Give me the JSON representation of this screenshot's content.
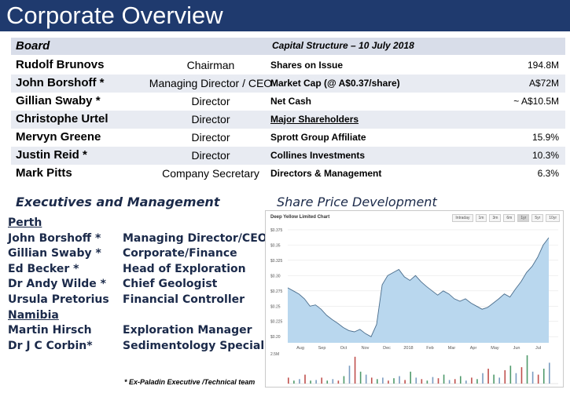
{
  "title": "Corporate Overview",
  "board": {
    "heading": "Board",
    "members": [
      {
        "name": "Rudolf Brunovs",
        "role": "Chairman"
      },
      {
        "name": "John Borshoff *",
        "role": "Managing Director / CEO"
      },
      {
        "name": "Gillian Swaby *",
        "role": "Director"
      },
      {
        "name": "Christophe Urtel",
        "role": "Director"
      },
      {
        "name": "Mervyn Greene",
        "role": "Director"
      },
      {
        "name": "Justin Reid *",
        "role": "Director"
      },
      {
        "name": "Mark Pitts",
        "role": "Company Secretary"
      }
    ]
  },
  "capital": {
    "heading": "Capital Structure – 10 July 2018",
    "rows": [
      {
        "label": "Shares on Issue",
        "value": "194.8M"
      },
      {
        "label": "Market Cap (@ A$0.37/share)",
        "value": "A$72M"
      },
      {
        "label": "Net Cash",
        "value": "~ A$10.5M"
      },
      {
        "label": "Major Shareholders",
        "value": ""
      },
      {
        "label": "Sprott Group Affiliate",
        "value": "15.9%"
      },
      {
        "label": "Collines Investments",
        "value": "10.3%"
      },
      {
        "label": "Directors & Management",
        "value": "6.3%"
      }
    ]
  },
  "executives": {
    "heading": "Executives and Management",
    "lines": [
      {
        "location": "Perth"
      },
      {
        "name": "John Borshoff *",
        "role": "Managing  Director/CEO"
      },
      {
        "name": "Gillian Swaby *",
        "role": "Corporate/Finance"
      },
      {
        "name": "Ed Becker *",
        "role": "Head of Exploration"
      },
      {
        "name": "Dr Andy Wilde *",
        "role": "Chief Geologist"
      },
      {
        "name": "Ursula Pretorius",
        "role": "Financial Controller"
      },
      {
        "location": "Namibia"
      },
      {
        "name": "Martin Hirsch",
        "role": "Exploration Manager"
      },
      {
        "name": "Dr J C Corbin*",
        "role": "Sedimentology Specialist"
      }
    ],
    "footnote": "* Ex-Paladin Executive /Technical team"
  },
  "share_price": {
    "heading": "Share Price Development",
    "chart_title": "Deep Yellow Limited Chart",
    "range_buttons": [
      "Intraday",
      "1m",
      "3m",
      "6m",
      "1yr",
      "5yr",
      "10yr"
    ],
    "active_range": "1yr"
  },
  "chart_data": {
    "type": "area",
    "title": "Deep Yellow Limited Chart",
    "x_labels": [
      "Aug",
      "Sep",
      "Oct",
      "Nov",
      "Dec",
      "2018",
      "Feb",
      "Mar",
      "Apr",
      "May",
      "Jun",
      "Jul"
    ],
    "y_ticks": [
      "$0.375",
      "$0.35",
      "$0.325",
      "$0.30",
      "$0.275",
      "$0.25",
      "$0.225",
      "$0.20"
    ],
    "ylim": [
      0.19,
      0.38
    ],
    "price_series": [
      0.28,
      0.275,
      0.27,
      0.262,
      0.25,
      0.252,
      0.245,
      0.235,
      0.228,
      0.222,
      0.215,
      0.21,
      0.208,
      0.212,
      0.205,
      0.2,
      0.22,
      0.285,
      0.3,
      0.305,
      0.31,
      0.298,
      0.292,
      0.3,
      0.29,
      0.282,
      0.275,
      0.268,
      0.275,
      0.27,
      0.262,
      0.258,
      0.262,
      0.255,
      0.25,
      0.245,
      0.248,
      0.255,
      0.262,
      0.27,
      0.265,
      0.278,
      0.29,
      0.305,
      0.315,
      0.33,
      0.35,
      0.362
    ],
    "volume_ylabel": "2.5M",
    "volume_series": [
      0.2,
      0.1,
      0.15,
      0.3,
      0.1,
      0.12,
      0.2,
      0.1,
      0.15,
      0.1,
      0.25,
      0.6,
      0.9,
      0.4,
      0.3,
      0.2,
      0.15,
      0.2,
      0.1,
      0.18,
      0.25,
      0.12,
      0.4,
      0.2,
      0.15,
      0.1,
      0.22,
      0.18,
      0.3,
      0.12,
      0.15,
      0.25,
      0.1,
      0.2,
      0.15,
      0.35,
      0.5,
      0.3,
      0.2,
      0.45,
      0.6,
      0.35,
      0.55,
      0.95,
      0.4,
      0.3,
      0.5,
      0.7
    ]
  }
}
